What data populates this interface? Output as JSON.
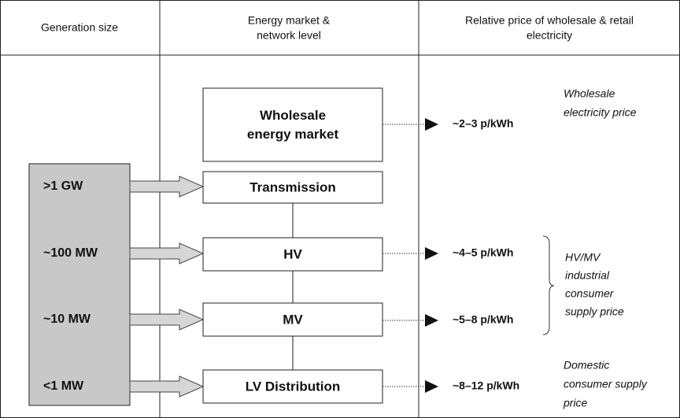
{
  "headers": [
    [
      "Generation size"
    ],
    [
      "Energy market &",
      "network level"
    ],
    [
      "Relative price of wholesale & retail",
      "electricity"
    ]
  ],
  "generation_sizes": [
    ">1 GW",
    "~100 MW",
    "~10 MW",
    "<1 MW"
  ],
  "boxes": [
    [
      "Wholesale",
      "energy market"
    ],
    [
      "Transmission"
    ],
    [
      "HV"
    ],
    [
      "MV"
    ],
    [
      "LV Distribution"
    ]
  ],
  "prices": [
    "~2–3 p/kWh",
    "~4–5 p/kWh",
    "~5–8 p/kWh",
    "~8–12 p/kWh"
  ],
  "notes": [
    [
      "Wholesale",
      "electricity price"
    ],
    [
      "HV/MV",
      "industrial",
      "consumer",
      "supply price"
    ],
    [
      "Domestic",
      "consumer supply",
      "price"
    ]
  ]
}
